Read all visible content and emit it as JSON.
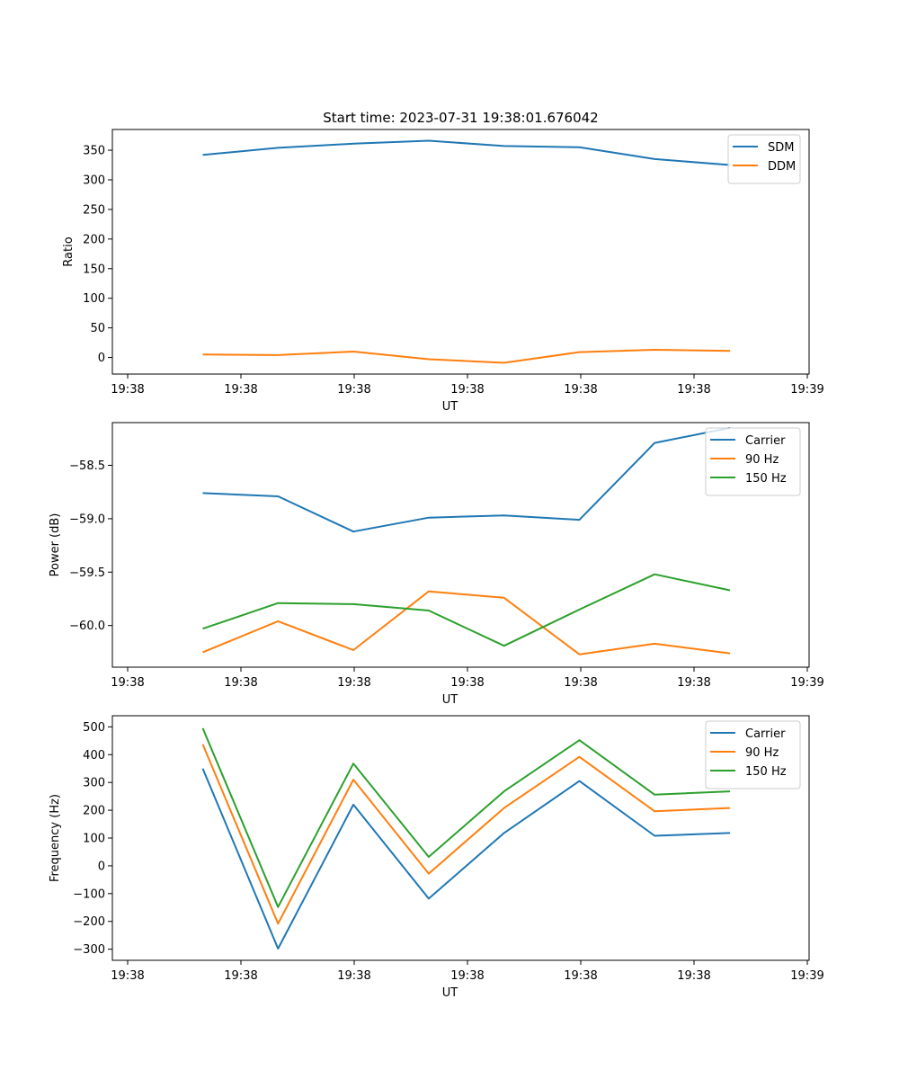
{
  "figure_title": "Start time: 2023-07-31 19:38:01.676042",
  "chart_data": [
    {
      "type": "line",
      "title": "Start time: 2023-07-31 19:38:01.676042",
      "xlabel": "UT",
      "ylabel": "Ratio",
      "x_tick_labels": [
        "19:38",
        "19:38",
        "19:38",
        "19:38",
        "19:38",
        "19:38",
        "19:39"
      ],
      "x": [
        1,
        2,
        3,
        4,
        5,
        6,
        7,
        8
      ],
      "xlim": [
        -0.2,
        9.05
      ],
      "ylim": [
        -28,
        385
      ],
      "yticks": [
        0,
        50,
        100,
        150,
        200,
        250,
        300,
        350
      ],
      "y_tick_labels": [
        "0",
        "50",
        "100",
        "150",
        "200",
        "250",
        "300",
        "350"
      ],
      "legend": "top-right",
      "series": [
        {
          "name": "SDM",
          "color": "#1f77b4",
          "values": [
            342,
            354,
            361,
            366,
            357,
            355,
            335,
            325
          ]
        },
        {
          "name": "DDM",
          "color": "#ff7f0e",
          "values": [
            5,
            4,
            10,
            -3,
            -9,
            9,
            13,
            11
          ]
        }
      ]
    },
    {
      "type": "line",
      "title": "",
      "xlabel": "UT",
      "ylabel": "Power (dB)",
      "x_tick_labels": [
        "19:38",
        "19:38",
        "19:38",
        "19:38",
        "19:38",
        "19:38",
        "19:39"
      ],
      "x": [
        1,
        2,
        3,
        4,
        5,
        6,
        7,
        8
      ],
      "xlim": [
        -0.2,
        9.05
      ],
      "ylim": [
        -60.39,
        -58.1
      ],
      "yticks": [
        -60.0,
        -59.5,
        -59.0,
        -58.5
      ],
      "y_tick_labels": [
        "−60.0",
        "−59.5",
        "−59.0",
        "−58.5"
      ],
      "legend": "top-right",
      "series": [
        {
          "name": "Carrier",
          "color": "#1f77b4",
          "values": [
            -58.76,
            -58.79,
            -59.12,
            -58.99,
            -58.97,
            -59.01,
            -58.29,
            -58.15
          ]
        },
        {
          "name": "90 Hz",
          "color": "#ff7f0e",
          "values": [
            -60.25,
            -59.96,
            -60.23,
            -59.68,
            -59.74,
            -60.27,
            -60.17,
            -60.26
          ]
        },
        {
          "name": "150 Hz",
          "color": "#2ca02c",
          "values": [
            -60.03,
            -59.79,
            -59.8,
            -59.86,
            -60.19,
            -59.85,
            -59.52,
            -59.67
          ]
        }
      ]
    },
    {
      "type": "line",
      "title": "",
      "xlabel": "UT",
      "ylabel": "Frequency (Hz)",
      "x_tick_labels": [
        "19:38",
        "19:38",
        "19:38",
        "19:38",
        "19:38",
        "19:38",
        "19:39"
      ],
      "x": [
        1,
        2,
        3,
        4,
        5,
        6,
        7,
        8
      ],
      "xlim": [
        -0.2,
        9.05
      ],
      "ylim": [
        -340,
        540
      ],
      "yticks": [
        -300,
        -200,
        -100,
        0,
        100,
        200,
        300,
        400,
        500
      ],
      "y_tick_labels": [
        "−300",
        "−200",
        "−100",
        "0",
        "100",
        "200",
        "300",
        "400",
        "500"
      ],
      "legend": "top-right",
      "series": [
        {
          "name": "Carrier",
          "color": "#1f77b4",
          "values": [
            350,
            -298,
            220,
            -118,
            118,
            305,
            108,
            118
          ]
        },
        {
          "name": "90 Hz",
          "color": "#ff7f0e",
          "values": [
            437,
            -208,
            310,
            -28,
            208,
            392,
            196,
            208
          ]
        },
        {
          "name": "150 Hz",
          "color": "#2ca02c",
          "values": [
            495,
            -148,
            368,
            32,
            268,
            452,
            256,
            268
          ]
        }
      ]
    }
  ]
}
